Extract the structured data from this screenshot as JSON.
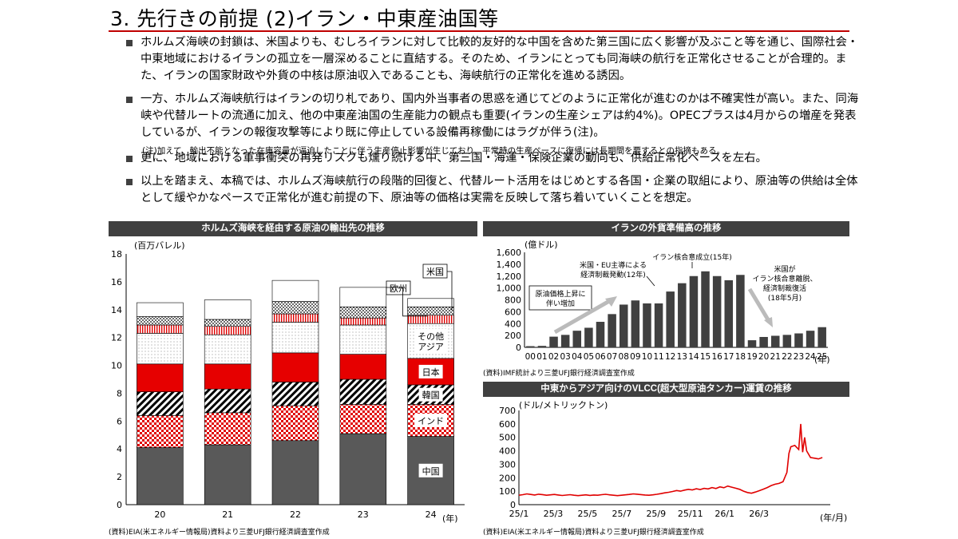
{
  "title": "3. 先行きの前提 (2)イラン・中東産油国等",
  "bullets": [
    "ホルムズ海峡の封鎖は、米国よりも、むしろイランに対して比較的友好的な中国を含めた第三国に広く影響が及ぶこと等を通じ、国際社会・中東地域におけるイランの孤立を一層深めることに直結する。そのため、イランにとっても同海峡の航行を正常化させることが合理的。また、イランの国家財政や外貨の中核は原油収入であることも、海峡航行の正常化を進める誘因。",
    "一方、ホルムズ海峡航行はイランの切り札であり、国内外当事者の思惑を通じてどのように正常化が進むのかは不確実性が高い。また、同海峡や代替ルートの流通に加え、他の中東産油国の生産能力の観点も重要(イランの生産シェアは約4%)。OPECプラスは4月からの増産を発表しているが、イランの報復攻撃等により既に停止している設備再稼働にはラグが伴う(注)。",
    "更に、地域における軍事衝突の再発リスクも燻り続ける中、第三国・海運・保険企業の動向も、供給正常化ペースを左右。",
    "以上を踏まえ、本稿では、ホルムズ海峡航行の段階的回復と、代替ルート活用をはじめとする各国・企業の取組により、原油等の供給は全体として緩やかなペースで正常化が進む前提の下、原油等の価格は実需を反映して落ち着いていくことを想定。"
  ],
  "note": "(注)加えて、輸出不能となった在庫容量が逼迫したことに伴う生産停止影響が生じており、平常時の生産ペースに復帰には長期間を要するとの指摘もある。",
  "chart_data": [
    {
      "type": "bar",
      "stacked": true,
      "title": "ホルムズ海峡を経由する原油の輸出先の推移",
      "unit": "(百万バレル)",
      "x_unit": "(年)",
      "categories": [
        "20",
        "21",
        "22",
        "23",
        "24"
      ],
      "ylim": [
        0,
        18
      ],
      "yticks": [
        "0",
        "2",
        "4",
        "6",
        "8",
        "10",
        "12",
        "14",
        "16",
        "18"
      ],
      "series": [
        {
          "name": "中国",
          "fill": "#595959",
          "values": [
            4.1,
            4.3,
            4.6,
            5.1,
            4.9
          ]
        },
        {
          "name": "インド",
          "fill": "red-check",
          "values": [
            2.3,
            2.3,
            2.5,
            2.1,
            2.3
          ]
        },
        {
          "name": "韓国",
          "fill": "diagonal-hatch",
          "values": [
            1.7,
            1.7,
            1.7,
            1.8,
            1.4
          ]
        },
        {
          "name": "日本",
          "fill": "#e60000",
          "values": [
            2.0,
            1.8,
            2.1,
            1.8,
            1.9
          ]
        },
        {
          "name": "その他アジア",
          "fill": "dotted",
          "values": [
            2.2,
            2.1,
            2.2,
            2.1,
            2.5
          ]
        },
        {
          "name": "",
          "fill": "red-vertical-lines",
          "values": [
            0.6,
            0.6,
            0.6,
            0.5,
            0.6
          ]
        },
        {
          "name": "",
          "fill": "black-dots",
          "values": [
            0.6,
            0.5,
            0.9,
            0.8,
            0.6
          ]
        },
        {
          "name": "",
          "fill": "#ffffff",
          "values": [
            1.0,
            1.4,
            1.5,
            1.4,
            0.6
          ]
        }
      ],
      "callouts": [
        "米国",
        "欧州"
      ],
      "source": "(資料)EIA(米エネルギー情報局)資料より三菱UFJ銀行経済調査室作成"
    },
    {
      "type": "bar",
      "title": "イランの外貨準備高の推移",
      "unit": "(億ドル)",
      "x_unit": "(年)",
      "categories": [
        "00",
        "01",
        "02",
        "03",
        "04",
        "05",
        "06",
        "07",
        "08",
        "09",
        "10",
        "11",
        "12",
        "13",
        "14",
        "15",
        "16",
        "17",
        "18",
        "19",
        "20",
        "21",
        "22",
        "23",
        "24",
        "25"
      ],
      "values": [
        20,
        25,
        180,
        210,
        280,
        330,
        430,
        560,
        720,
        790,
        740,
        740,
        940,
        1080,
        1200,
        1280,
        1200,
        1130,
        1220,
        120,
        175,
        195,
        210,
        235,
        280,
        340
      ],
      "ylim": [
        0,
        1600
      ],
      "yticks": [
        "0",
        "200",
        "400",
        "600",
        "800",
        "1,000",
        "1,200",
        "1,400",
        "1,600"
      ],
      "annotations": [
        "原油価格上昇に伴い増加",
        "米国・EU主導による経済制裁発動(12年)",
        "イラン核合意成立(15年)",
        "米国がイラン核合意離脱、経済制裁復活(18年5月)"
      ],
      "source": "(資料)IMF統計より三菱UFJ銀行経済調査室作成"
    },
    {
      "type": "line",
      "title": "中東からアジア向けのVLCC(超大型原油タンカー)運賃の推移",
      "unit": "(ドル/メトリックトン)",
      "x_unit": "(年/月)",
      "ylim": [
        0,
        700
      ],
      "yticks": [
        "0",
        "100",
        "200",
        "300",
        "400",
        "500",
        "600",
        "700"
      ],
      "xticks": [
        "25/1",
        "25/3",
        "25/5",
        "25/7",
        "25/9",
        "25/11",
        "26/1",
        "26/3"
      ],
      "series": [
        {
          "color": "#e00000",
          "points": [
            [
              0,
              70
            ],
            [
              1,
              74
            ],
            [
              2,
              80
            ],
            [
              3,
              76
            ],
            [
              4,
              72
            ],
            [
              5,
              78
            ],
            [
              6,
              75
            ],
            [
              7,
              70
            ],
            [
              8,
              73
            ],
            [
              9,
              76
            ],
            [
              10,
              72
            ],
            [
              11,
              68
            ],
            [
              12,
              71
            ],
            [
              13,
              74
            ],
            [
              14,
              70
            ],
            [
              15,
              67
            ],
            [
              16,
              70
            ],
            [
              17,
              73
            ],
            [
              18,
              69
            ],
            [
              19,
              72
            ],
            [
              20,
              70
            ],
            [
              21,
              74
            ],
            [
              22,
              77
            ],
            [
              23,
              73
            ],
            [
              24,
              70
            ],
            [
              25,
              67
            ],
            [
              26,
              70
            ],
            [
              27,
              73
            ],
            [
              28,
              76
            ],
            [
              29,
              80
            ],
            [
              30,
              78
            ],
            [
              31,
              75
            ],
            [
              32,
              72
            ],
            [
              33,
              70
            ],
            [
              34,
              73
            ],
            [
              35,
              77
            ],
            [
              36,
              82
            ],
            [
              37,
              88
            ],
            [
              38,
              92
            ],
            [
              39,
              98
            ],
            [
              40,
              105
            ],
            [
              41,
              100
            ],
            [
              42,
              108
            ],
            [
              43,
              114
            ],
            [
              44,
              110
            ],
            [
              45,
              118
            ],
            [
              46,
              113
            ],
            [
              47,
              121
            ],
            [
              48,
              117
            ],
            [
              49,
              127
            ],
            [
              50,
              120
            ],
            [
              51,
              132
            ],
            [
              52,
              126
            ],
            [
              53,
              138
            ],
            [
              54,
              130
            ],
            [
              55,
              122
            ],
            [
              56,
              114
            ],
            [
              57,
              100
            ],
            [
              58,
              90
            ],
            [
              59,
              85
            ],
            [
              60,
              94
            ],
            [
              61,
              104
            ],
            [
              62,
              115
            ],
            [
              63,
              127
            ],
            [
              64,
              142
            ],
            [
              65,
              152
            ],
            [
              66,
              158
            ],
            [
              67,
              170
            ],
            [
              68,
              240
            ],
            [
              68.5,
              380
            ],
            [
              69,
              430
            ],
            [
              70,
              440
            ],
            [
              71,
              410
            ],
            [
              71.5,
              600
            ],
            [
              72,
              390
            ],
            [
              72.5,
              500
            ],
            [
              73,
              400
            ],
            [
              74,
              350
            ],
            [
              75,
              345
            ],
            [
              76,
              340
            ],
            [
              77,
              350
            ]
          ]
        }
      ],
      "xlim": [
        0,
        79
      ],
      "source": "(資料)EIA(米エネルギー情報局)資料より三菱UFJ銀行経済調査室作成"
    }
  ]
}
